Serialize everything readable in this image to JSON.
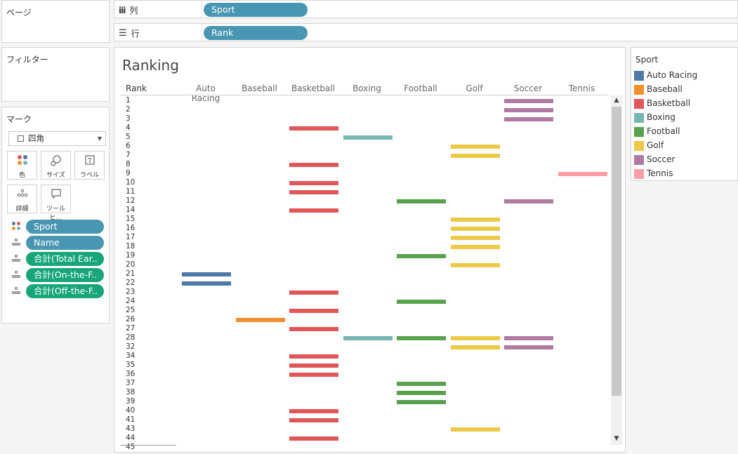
{
  "side": {
    "pages_title": "ページ",
    "filters_title": "フィルター",
    "marks_title": "マーク",
    "mark_type": "四角",
    "buttons": [
      {
        "label": "色",
        "icon": "color-icon"
      },
      {
        "label": "サイズ",
        "icon": "size-icon"
      },
      {
        "label": "ラベル",
        "icon": "label-icon"
      },
      {
        "label": "詳細",
        "icon": "detail-icon"
      },
      {
        "label": "ツールヒ…",
        "icon": "tooltip-icon"
      }
    ],
    "fields": [
      {
        "label": "Sport",
        "kind": "color",
        "pill": "blue"
      },
      {
        "label": "Name",
        "kind": "detail",
        "pill": "blue"
      },
      {
        "label": "合計(Total Ear..",
        "kind": "detail",
        "pill": "green"
      },
      {
        "label": "合計(On-the-F..",
        "kind": "detail",
        "pill": "green"
      },
      {
        "label": "合計(Off-the-F..",
        "kind": "detail",
        "pill": "green"
      }
    ]
  },
  "shelves": {
    "columns_label": "列",
    "columns_pill": "Sport",
    "rows_label": "行",
    "rows_pill": "Rank"
  },
  "sheet": {
    "title": "Ranking",
    "rank_header": "Rank"
  },
  "legend": {
    "title": "Sport"
  },
  "colors": {
    "Auto Racing": "#4e79a7",
    "Baseball": "#f28e2b",
    "Basketball": "#e15759",
    "Boxing": "#76b7b2",
    "Football": "#59a14f",
    "Golf": "#edc948",
    "Soccer": "#b07aa1",
    "Tennis": "#ff9da7"
  },
  "chart_data": {
    "type": "bar",
    "title": "Ranking",
    "xlabel": "Sport",
    "ylabel": "Rank",
    "categories": [
      "Auto Racing",
      "Baseball",
      "Basketball",
      "Boxing",
      "Football",
      "Golf",
      "Soccer",
      "Tennis"
    ],
    "ranks": [
      "1",
      "2",
      "3",
      "4",
      "5",
      "6",
      "7",
      "8",
      "9",
      "10",
      "11",
      "12",
      "14",
      "15",
      "16",
      "17",
      "18",
      "19",
      "20",
      "21",
      "22",
      "23",
      "24",
      "25",
      "26",
      "27",
      "28",
      "32",
      "34",
      "35",
      "36",
      "37",
      "38",
      "39",
      "40",
      "41",
      "43",
      "44",
      "45"
    ],
    "series": [
      {
        "name": "Auto Racing",
        "ranks": [
          "21",
          "22"
        ]
      },
      {
        "name": "Baseball",
        "ranks": [
          "26"
        ]
      },
      {
        "name": "Basketball",
        "ranks": [
          "4",
          "8",
          "10",
          "11",
          "14",
          "23",
          "25",
          "27",
          "34",
          "35",
          "36",
          "40",
          "41",
          "44"
        ]
      },
      {
        "name": "Boxing",
        "ranks": [
          "5",
          "28"
        ]
      },
      {
        "name": "Football",
        "ranks": [
          "12",
          "19",
          "24",
          "28",
          "37",
          "38",
          "39"
        ]
      },
      {
        "name": "Golf",
        "ranks": [
          "6",
          "7",
          "15",
          "16",
          "17",
          "18",
          "20",
          "28",
          "32",
          "43"
        ]
      },
      {
        "name": "Soccer",
        "ranks": [
          "1",
          "2",
          "3",
          "12",
          "28",
          "32"
        ]
      },
      {
        "name": "Tennis",
        "ranks": [
          "9"
        ]
      }
    ],
    "legend_position": "right"
  }
}
